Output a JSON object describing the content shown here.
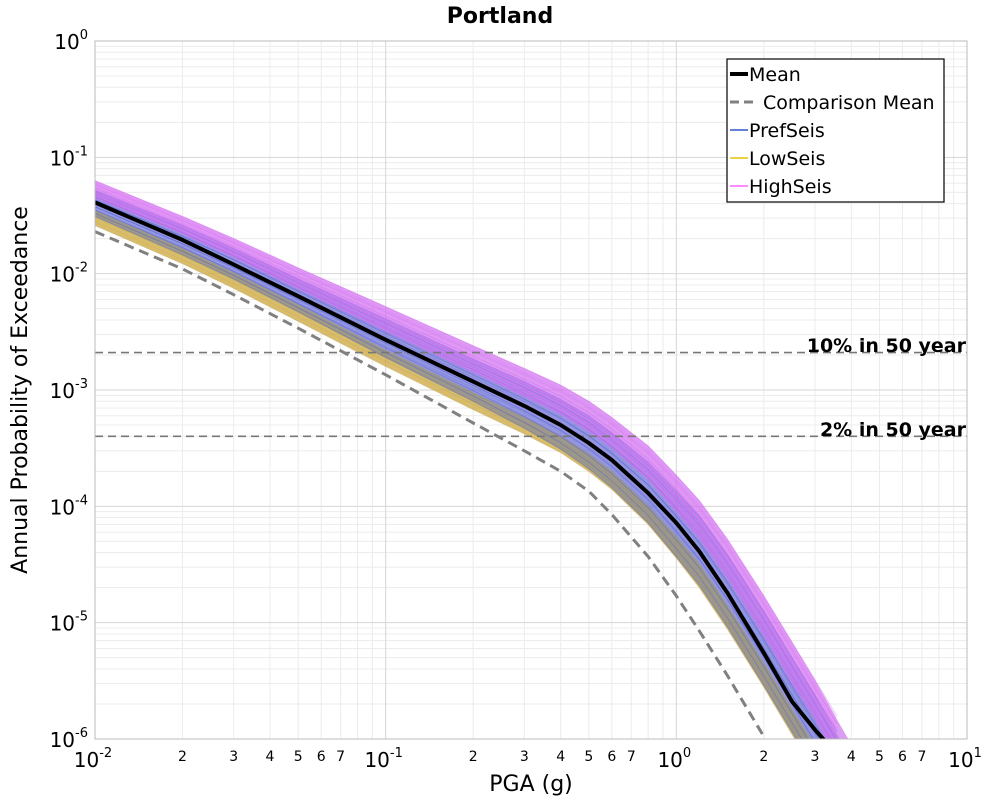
{
  "chart_data": {
    "type": "line",
    "title": "Portland",
    "xlabel": "PGA (g)",
    "ylabel": "Annual Probability of Exceedance",
    "xscale": "log",
    "yscale": "log",
    "xlim": [
      0.01,
      10
    ],
    "ylim": [
      1e-06,
      1
    ],
    "grid": true,
    "legend_position": "top-right",
    "x_major_ticks": [
      {
        "base": "10",
        "exp": "-2",
        "value": 0.01
      },
      {
        "base": "10",
        "exp": "-1",
        "value": 0.1
      },
      {
        "base": "10",
        "exp": "0",
        "value": 1
      },
      {
        "base": "10",
        "exp": "1",
        "value": 10
      }
    ],
    "x_minor_ticks": [
      {
        "label": "2",
        "value": 0.02
      },
      {
        "label": "3",
        "value": 0.03
      },
      {
        "label": "4",
        "value": 0.04
      },
      {
        "label": "5",
        "value": 0.05
      },
      {
        "label": "6",
        "value": 0.06
      },
      {
        "label": "7",
        "value": 0.07
      },
      {
        "label": "2",
        "value": 0.2
      },
      {
        "label": "3",
        "value": 0.3
      },
      {
        "label": "4",
        "value": 0.4
      },
      {
        "label": "5",
        "value": 0.5
      },
      {
        "label": "6",
        "value": 0.6
      },
      {
        "label": "7",
        "value": 0.7
      },
      {
        "label": "2",
        "value": 2
      },
      {
        "label": "3",
        "value": 3
      },
      {
        "label": "4",
        "value": 4
      },
      {
        "label": "5",
        "value": 5
      },
      {
        "label": "6",
        "value": 6
      },
      {
        "label": "7",
        "value": 7
      }
    ],
    "y_major_ticks": [
      {
        "base": "10",
        "exp": "0",
        "value": 1
      },
      {
        "base": "10",
        "exp": "-1",
        "value": 0.1
      },
      {
        "base": "10",
        "exp": "-2",
        "value": 0.01
      },
      {
        "base": "10",
        "exp": "-3",
        "value": 0.001
      },
      {
        "base": "10",
        "exp": "-4",
        "value": 0.0001
      },
      {
        "base": "10",
        "exp": "-5",
        "value": 1e-05
      },
      {
        "base": "10",
        "exp": "-6",
        "value": 1e-06
      }
    ],
    "x": [
      0.01,
      0.02,
      0.03,
      0.05,
      0.1,
      0.2,
      0.3,
      0.4,
      0.5,
      0.6,
      0.8,
      1.0,
      1.2,
      1.5,
      2.0,
      2.5,
      3.0,
      3.2,
      3.5,
      4.0
    ],
    "series": [
      {
        "name": "Mean",
        "style": "solid",
        "color": "#000000",
        "width": 4,
        "values": [
          0.041,
          0.0195,
          0.012,
          0.0064,
          0.0027,
          0.00118,
          0.00073,
          0.0005,
          0.00035,
          0.00025,
          0.00013,
          7.2e-05,
          4.1e-05,
          1.8e-05,
          5.5e-06,
          2.1e-06,
          1.2e-06,
          1e-06,
          null,
          null
        ]
      },
      {
        "name": "Comparison Mean",
        "style": "dashed",
        "color": "#808080",
        "width": 3,
        "values": [
          0.023,
          0.011,
          0.0066,
          0.0034,
          0.00135,
          0.00052,
          0.0003,
          0.0002,
          0.000135,
          8.5e-05,
          3.7e-05,
          1.7e-05,
          8.5e-06,
          3.5e-06,
          1.05e-06,
          null,
          null,
          null,
          null,
          null
        ]
      },
      {
        "name": "PrefSeis",
        "style": "band",
        "color": "#3355cc",
        "upper": [
          0.052,
          0.026,
          0.0165,
          0.009,
          0.0041,
          0.00185,
          0.00118,
          0.00083,
          0.0006,
          0.00043,
          0.00024,
          0.000135,
          8.2e-05,
          3.8e-05,
          1.25e-05,
          5e-06,
          2.4e-06,
          1.8e-06,
          1.2e-06,
          null
        ],
        "lower": [
          0.031,
          0.0145,
          0.009,
          0.0047,
          0.0019,
          0.0008,
          0.00047,
          0.00031,
          0.00021,
          0.000145,
          7.2e-05,
          3.7e-05,
          2.1e-05,
          9.2e-06,
          2.9e-06,
          1.15e-06,
          null,
          null,
          null,
          null
        ]
      },
      {
        "name": "LowSeis",
        "style": "band",
        "color": "#e6c200",
        "upper": [
          0.035,
          0.0165,
          0.0102,
          0.0054,
          0.0022,
          0.00095,
          0.00058,
          0.0004,
          0.00028,
          0.0002,
          0.0001,
          5.5e-05,
          3.2e-05,
          1.4e-05,
          4.5e-06,
          1.8e-06,
          9e-07,
          null,
          null,
          null
        ],
        "lower": [
          0.026,
          0.0122,
          0.0075,
          0.0039,
          0.0016,
          0.00068,
          0.00042,
          0.00029,
          0.0002,
          0.00014,
          7e-05,
          3.6e-05,
          2e-05,
          8.8e-06,
          2.8e-06,
          1.1e-06,
          null,
          null,
          null,
          null
        ]
      },
      {
        "name": "HighSeis",
        "style": "band",
        "color": "#ff66ff",
        "upper": [
          0.063,
          0.031,
          0.02,
          0.0112,
          0.0052,
          0.0024,
          0.00153,
          0.0011,
          0.0008,
          0.00058,
          0.00033,
          0.000185,
          0.000112,
          5.2e-05,
          1.7e-05,
          6.8e-06,
          3.2e-06,
          2.4e-06,
          1.6e-06,
          9e-07
        ],
        "lower": [
          0.045,
          0.022,
          0.0138,
          0.0074,
          0.0032,
          0.00142,
          0.00088,
          0.00062,
          0.00044,
          0.00032,
          0.00017,
          9e-05,
          5.3e-05,
          2.4e-05,
          7.8e-06,
          3e-06,
          1.5e-06,
          1.1e-06,
          null,
          null
        ]
      }
    ],
    "reference_lines": [
      {
        "label": "10% in 50 year",
        "y": 0.0021
      },
      {
        "label": "2% in 50 year",
        "y": 0.0004
      }
    ]
  },
  "colors": {
    "mean": "#000000",
    "comparison": "#808080",
    "pref": "#3355cc",
    "low": "#e6c200",
    "high": "#ff66ff",
    "envelope": "#9b7fe0"
  }
}
